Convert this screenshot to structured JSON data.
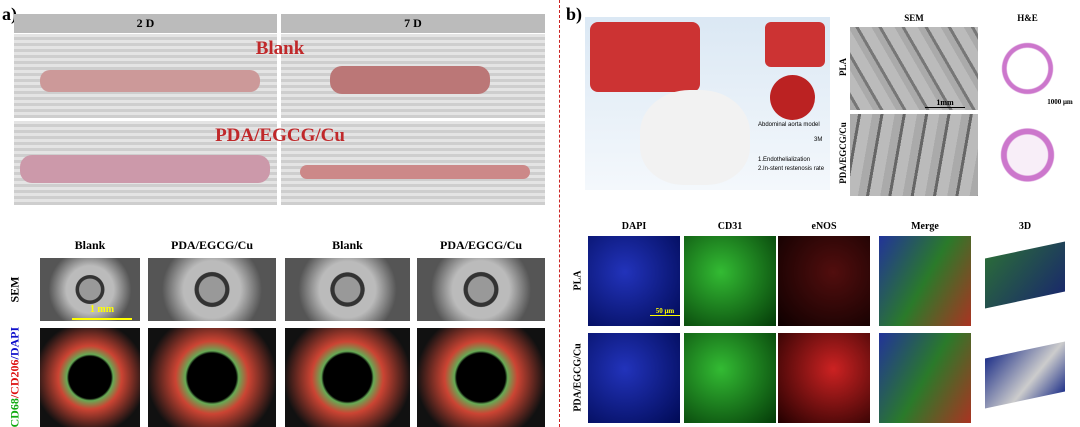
{
  "panel_a": {
    "label": "a)",
    "days": [
      "2 D",
      "7 D"
    ],
    "photo_labels": [
      "Blank",
      "PDA/EGCG/Cu"
    ],
    "column_labels": [
      "Blank",
      "PDA/EGCG/Cu",
      "Blank",
      "PDA/EGCG/Cu"
    ],
    "row_labels": {
      "sem": "SEM",
      "stain": [
        "CD68",
        "/CD206",
        "/DAPI"
      ]
    },
    "scale_bar": "1 mm"
  },
  "panel_b": {
    "label": "b)",
    "schematic": {
      "model": "Abdominal aorta model",
      "duration": "3M",
      "outcomes": [
        "1.Endothelialization",
        "2.In-stent restenosis rate"
      ]
    },
    "imaging_columns": [
      "SEM",
      "H&E"
    ],
    "imaging_rows": [
      "PLA",
      "PDA/EGCG/Cu"
    ],
    "sem_scale": "1mm",
    "he_scale": "1000 μm",
    "fluor_columns": [
      "DAPI",
      "CD31",
      "eNOS",
      "Merge",
      "3D"
    ],
    "fluor_rows": [
      "PLA",
      "PDA/EGCG/Cu"
    ],
    "fluor_scale": "50 μm"
  }
}
